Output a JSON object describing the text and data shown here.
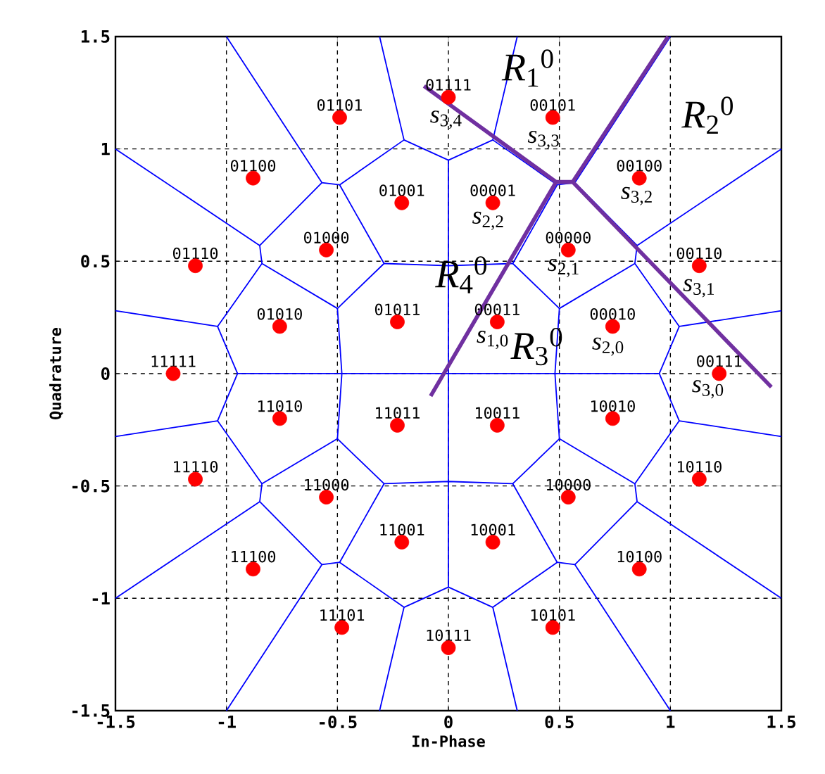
{
  "chart_data": {
    "type": "scatter",
    "xlabel": "In-Phase",
    "ylabel": "Quadrature",
    "xlim": [
      -1.5,
      1.5
    ],
    "ylim": [
      -1.5,
      1.5
    ],
    "xticks": [
      -1.5,
      -1,
      -0.5,
      0,
      0.5,
      1,
      1.5
    ],
    "yticks": [
      -1.5,
      -1,
      -0.5,
      0,
      0.5,
      1,
      1.5
    ],
    "grid": true,
    "series": [
      {
        "type": "scatter",
        "color": "#ff0000",
        "marker": "circle",
        "x": [
          0,
          -0.49,
          0.47,
          -0.88,
          0.86,
          -0.21,
          0.2,
          -0.55,
          0.54,
          -1.14,
          1.13,
          -0.76,
          -0.23,
          0.22,
          0.74,
          -1.24,
          1.22,
          -0.76,
          -0.23,
          0.22,
          0.74,
          -1.14,
          1.13,
          -0.55,
          0.54,
          -0.21,
          0.2,
          -0.88,
          0.86,
          -0.48,
          0.47,
          0
        ],
        "values": [
          1.23,
          1.14,
          1.14,
          0.87,
          0.87,
          0.76,
          0.76,
          0.55,
          0.55,
          0.48,
          0.48,
          0.21,
          0.23,
          0.23,
          0.21,
          0,
          0,
          -0.2,
          -0.23,
          -0.23,
          -0.2,
          -0.47,
          -0.47,
          -0.55,
          -0.55,
          -0.75,
          -0.75,
          -0.87,
          -0.87,
          -1.13,
          -1.13,
          -1.22
        ]
      },
      {
        "type": "line",
        "color": "#7030a0",
        "marker": "none",
        "x": [
          -0.08,
          0.485,
          -0.11,
          null,
          0.485,
          0.56,
          null,
          0.99,
          0.56,
          1.455
        ],
        "values": [
          -0.1,
          0.853,
          1.28,
          null,
          0.853,
          0.853,
          null,
          1.5,
          0.853,
          -0.06
        ]
      },
      {
        "type": "line",
        "color": "#0000ff",
        "marker": "none",
        "x": [
          -1,
          -0.57,
          -0.49,
          -0.2,
          -0.31
        ],
        "values": [
          1.5,
          0.85,
          0.84,
          1.04,
          1.5
        ]
      },
      {
        "type": "line",
        "color": "#0000ff",
        "marker": "none",
        "x": [
          -0.57,
          -0.85,
          -1.5
        ],
        "values": [
          0.85,
          0.57,
          1.0
        ]
      },
      {
        "type": "line",
        "color": "#0000ff",
        "marker": "none",
        "x": [
          -0.85,
          -0.84,
          -1.04,
          -1.5
        ],
        "values": [
          0.57,
          0.49,
          0.21,
          0.28
        ]
      },
      {
        "type": "line",
        "color": "#0000ff",
        "marker": "none",
        "x": [
          -0.84,
          -0.5,
          -0.29,
          -0.49
        ],
        "values": [
          0.49,
          0.29,
          0.49,
          0.84
        ]
      },
      {
        "type": "line",
        "color": "#0000ff",
        "marker": "none",
        "x": [
          1,
          0.57,
          0.49,
          0.2,
          0.31
        ],
        "values": [
          1.5,
          0.85,
          0.84,
          1.04,
          1.5
        ]
      },
      {
        "type": "line",
        "color": "#0000ff",
        "marker": "none",
        "x": [
          0.57,
          0.85,
          1.5
        ],
        "values": [
          0.85,
          0.57,
          1.0
        ]
      },
      {
        "type": "line",
        "color": "#0000ff",
        "marker": "none",
        "x": [
          0.85,
          0.84,
          1.04,
          1.5
        ],
        "values": [
          0.57,
          0.49,
          0.21,
          0.28
        ]
      },
      {
        "type": "line",
        "color": "#0000ff",
        "marker": "none",
        "x": [
          0.84,
          0.5,
          0.29,
          0.49
        ],
        "values": [
          0.49,
          0.29,
          0.49,
          0.84
        ]
      },
      {
        "type": "line",
        "color": "#0000ff",
        "marker": "none",
        "x": [
          -1,
          -0.57,
          -0.49,
          -0.2,
          -0.31
        ],
        "values": [
          -1.5,
          -0.85,
          -0.84,
          -1.04,
          -1.5
        ]
      },
      {
        "type": "line",
        "color": "#0000ff",
        "marker": "none",
        "x": [
          -0.57,
          -0.85,
          -1.5
        ],
        "values": [
          -0.85,
          -0.57,
          -1.0
        ]
      },
      {
        "type": "line",
        "color": "#0000ff",
        "marker": "none",
        "x": [
          -0.85,
          -0.84,
          -1.04,
          -1.5
        ],
        "values": [
          -0.57,
          -0.49,
          -0.21,
          -0.28
        ]
      },
      {
        "type": "line",
        "color": "#0000ff",
        "marker": "none",
        "x": [
          -0.84,
          -0.5,
          -0.29,
          -0.49
        ],
        "values": [
          -0.49,
          -0.29,
          -0.49,
          -0.84
        ]
      },
      {
        "type": "line",
        "color": "#0000ff",
        "marker": "none",
        "x": [
          1,
          0.57,
          0.49,
          0.2,
          0.31
        ],
        "values": [
          -1.5,
          -0.85,
          -0.84,
          -1.04,
          -1.5
        ]
      },
      {
        "type": "line",
        "color": "#0000ff",
        "marker": "none",
        "x": [
          0.57,
          0.85,
          1.5
        ],
        "values": [
          -0.85,
          -0.57,
          -1.0
        ]
      },
      {
        "type": "line",
        "color": "#0000ff",
        "marker": "none",
        "x": [
          0.85,
          0.84,
          1.04,
          1.5
        ],
        "values": [
          -0.57,
          -0.49,
          -0.21,
          -0.28
        ]
      },
      {
        "type": "line",
        "color": "#0000ff",
        "marker": "none",
        "x": [
          0.84,
          0.5,
          0.29,
          0.49
        ],
        "values": [
          -0.49,
          -0.29,
          -0.49,
          -0.84
        ]
      },
      {
        "type": "line",
        "color": "#0000ff",
        "marker": "none",
        "x": [
          -0.2,
          0,
          0.2
        ],
        "values": [
          1.04,
          0.95,
          1.04
        ]
      },
      {
        "type": "line",
        "color": "#0000ff",
        "marker": "none",
        "x": [
          -0.2,
          0,
          0.2
        ],
        "values": [
          -1.04,
          -0.95,
          -1.04
        ]
      },
      {
        "type": "line",
        "color": "#0000ff",
        "marker": "none",
        "x": [
          -0.29,
          0,
          0.29
        ],
        "values": [
          0.49,
          0.48,
          0.49
        ]
      },
      {
        "type": "line",
        "color": "#0000ff",
        "marker": "none",
        "x": [
          -0.29,
          0,
          0.29
        ],
        "values": [
          -0.49,
          -0.48,
          -0.49
        ]
      },
      {
        "type": "line",
        "color": "#0000ff",
        "marker": "none",
        "x": [
          -0.5,
          -0.48,
          -0.5
        ],
        "values": [
          0.29,
          0,
          -0.29
        ]
      },
      {
        "type": "line",
        "color": "#0000ff",
        "marker": "none",
        "x": [
          0.5,
          0.48,
          0.5
        ],
        "values": [
          0.29,
          0,
          -0.29
        ]
      },
      {
        "type": "line",
        "color": "#0000ff",
        "marker": "none",
        "x": [
          -1.04,
          -0.95,
          -1.04
        ],
        "values": [
          0.21,
          0,
          -0.21
        ]
      },
      {
        "type": "line",
        "color": "#0000ff",
        "marker": "none",
        "x": [
          1.04,
          0.95,
          1.04
        ],
        "values": [
          0.21,
          0,
          -0.21
        ]
      },
      {
        "type": "line",
        "color": "#0000ff",
        "marker": "none",
        "x": [
          0,
          0
        ],
        "values": [
          0.95,
          -0.95
        ]
      },
      {
        "type": "line",
        "color": "#0000ff",
        "marker": "none",
        "x": [
          -0.95,
          0.95
        ],
        "values": [
          0,
          0
        ]
      }
    ],
    "annotations": [
      {
        "text": "01111",
        "x": 0,
        "y": 1.23
      },
      {
        "text": "01101",
        "x": -0.49,
        "y": 1.14
      },
      {
        "text": "00101",
        "x": 0.47,
        "y": 1.14
      },
      {
        "text": "01100",
        "x": -0.88,
        "y": 0.87
      },
      {
        "text": "00100",
        "x": 0.86,
        "y": 0.87
      },
      {
        "text": "01001",
        "x": -0.21,
        "y": 0.76
      },
      {
        "text": "00001",
        "x": 0.2,
        "y": 0.76
      },
      {
        "text": "01000",
        "x": -0.55,
        "y": 0.55
      },
      {
        "text": "00000",
        "x": 0.54,
        "y": 0.55
      },
      {
        "text": "01110",
        "x": -1.14,
        "y": 0.48
      },
      {
        "text": "00110",
        "x": 1.13,
        "y": 0.48
      },
      {
        "text": "01010",
        "x": -0.76,
        "y": 0.21
      },
      {
        "text": "01011",
        "x": -0.23,
        "y": 0.23
      },
      {
        "text": "00011",
        "x": 0.22,
        "y": 0.23
      },
      {
        "text": "00010",
        "x": 0.74,
        "y": 0.21
      },
      {
        "text": "11111",
        "x": -1.24,
        "y": 0
      },
      {
        "text": "00111",
        "x": 1.22,
        "y": 0
      },
      {
        "text": "11010",
        "x": -0.76,
        "y": -0.2
      },
      {
        "text": "11011",
        "x": -0.23,
        "y": -0.23
      },
      {
        "text": "10011",
        "x": 0.22,
        "y": -0.23
      },
      {
        "text": "10010",
        "x": 0.74,
        "y": -0.2
      },
      {
        "text": "11110",
        "x": -1.14,
        "y": -0.47
      },
      {
        "text": "10110",
        "x": 1.13,
        "y": -0.47
      },
      {
        "text": "11000",
        "x": -0.55,
        "y": -0.55
      },
      {
        "text": "10000",
        "x": 0.54,
        "y": -0.55
      },
      {
        "text": "11001",
        "x": -0.21,
        "y": -0.75
      },
      {
        "text": "10001",
        "x": 0.2,
        "y": -0.75
      },
      {
        "text": "11100",
        "x": -0.88,
        "y": -0.87
      },
      {
        "text": "10100",
        "x": 0.86,
        "y": -0.87
      },
      {
        "text": "11101",
        "x": -0.48,
        "y": -1.13
      },
      {
        "text": "10101",
        "x": 0.47,
        "y": -1.13
      },
      {
        "text": "10111",
        "x": 0,
        "y": -1.22
      },
      "*s*$_{3,4}$",
      "*s*$_{3,3}$",
      "*s*$_{3,2}$",
      "*s*$_{2,2}$",
      "*s*$_{2,1}$",
      "*s*$_{3,1}$",
      "*s*$_{1,0}$",
      "*s*$_{2,0}$",
      "*s*$_{3,0}$",
      "*R*$_{1}$$^{0}$",
      "*R*$_{2}$$^{0}$",
      "*R*$_{4}$$^{0}$",
      "*R*$_{3}$$^{0}$"
    ]
  }
}
